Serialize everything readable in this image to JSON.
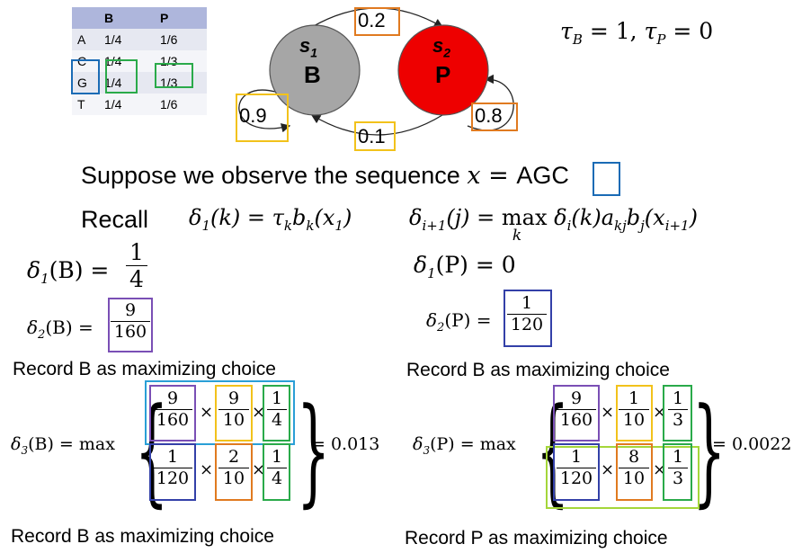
{
  "emission_table": {
    "headers": [
      "",
      "B",
      "P"
    ],
    "rows": [
      [
        "A",
        "1/4",
        "1/6"
      ],
      [
        "C",
        "1/4",
        "1/3"
      ],
      [
        "G",
        "1/4",
        "1/3"
      ],
      [
        "T",
        "1/4",
        "1/6"
      ]
    ]
  },
  "hmm": {
    "state1": {
      "sub": "1",
      "name": "B",
      "color": "#a6a6a6"
    },
    "state2": {
      "sub": "2",
      "name": "P",
      "color": "#ee0000"
    },
    "trans_BP": "0.2",
    "trans_BB": "0.9",
    "trans_PB": "0.1",
    "trans_PP": "0.8"
  },
  "tau": {
    "lhs1": "τ",
    "sub1": "B",
    "eq1": " = 1, ",
    "lhs2": "τ",
    "sub2": "P",
    "eq2": " = 0"
  },
  "observe": {
    "text": "Suppose we observe the sequence ",
    "var": "x",
    "eq": " = ",
    "seq_prefix": "AG",
    "seq_last": "C"
  },
  "recall": {
    "label": "Recall",
    "formula1": {
      "a": "δ",
      "a_sub": "1",
      "b": "(k) = τ",
      "b_sub": "k",
      "c": "b",
      "c_sub": "k",
      "d": "(x",
      "d_sub": "1",
      "e": ")"
    },
    "formula2": {
      "a": "δ",
      "a_sub": "i+1",
      "b": "(j) = ",
      "max": "max",
      "max_sub": "k",
      "c": " δ",
      "c_sub": "i",
      "d": "(k)a",
      "d_sub": "kj",
      "e": "b",
      "e_sub": "j",
      "f": "(x",
      "f_sub": "i+1",
      "g": ")"
    }
  },
  "delta1B": {
    "lhs": "δ",
    "sub": "1",
    "arg": "(B) = ",
    "num": "1",
    "den": "4"
  },
  "delta1P": {
    "lhs": "δ",
    "sub": "1",
    "arg": "(P) = 0"
  },
  "delta2B": {
    "lhs": "δ",
    "sub": "2",
    "arg": "(B) = ",
    "num": "9",
    "den": "160"
  },
  "delta2P": {
    "lhs": "δ",
    "sub": "2",
    "arg": "(P) = ",
    "num": "1",
    "den": "120"
  },
  "record1": "Record B as maximizing choice",
  "record2": "Record B as maximizing choice",
  "record3": "Record B as maximizing choice",
  "record4": "Record P as maximizing choice",
  "delta3B": {
    "lhs": "δ",
    "sub": "3",
    "arg": "(B) = max",
    "row1": [
      [
        "9",
        "160"
      ],
      [
        "9",
        "10"
      ],
      [
        "1",
        "4"
      ]
    ],
    "row2": [
      [
        "1",
        "120"
      ],
      [
        "2",
        "10"
      ],
      [
        "1",
        "4"
      ]
    ],
    "result": "= 0.013"
  },
  "delta3P": {
    "lhs": "δ",
    "sub": "3",
    "arg": "(P) = max",
    "row1": [
      [
        "9",
        "160"
      ],
      [
        "1",
        "10"
      ],
      [
        "1",
        "3"
      ]
    ],
    "row2": [
      [
        "1",
        "120"
      ],
      [
        "8",
        "10"
      ],
      [
        "1",
        "3"
      ]
    ],
    "result": "= 0.0022"
  },
  "times": "×"
}
